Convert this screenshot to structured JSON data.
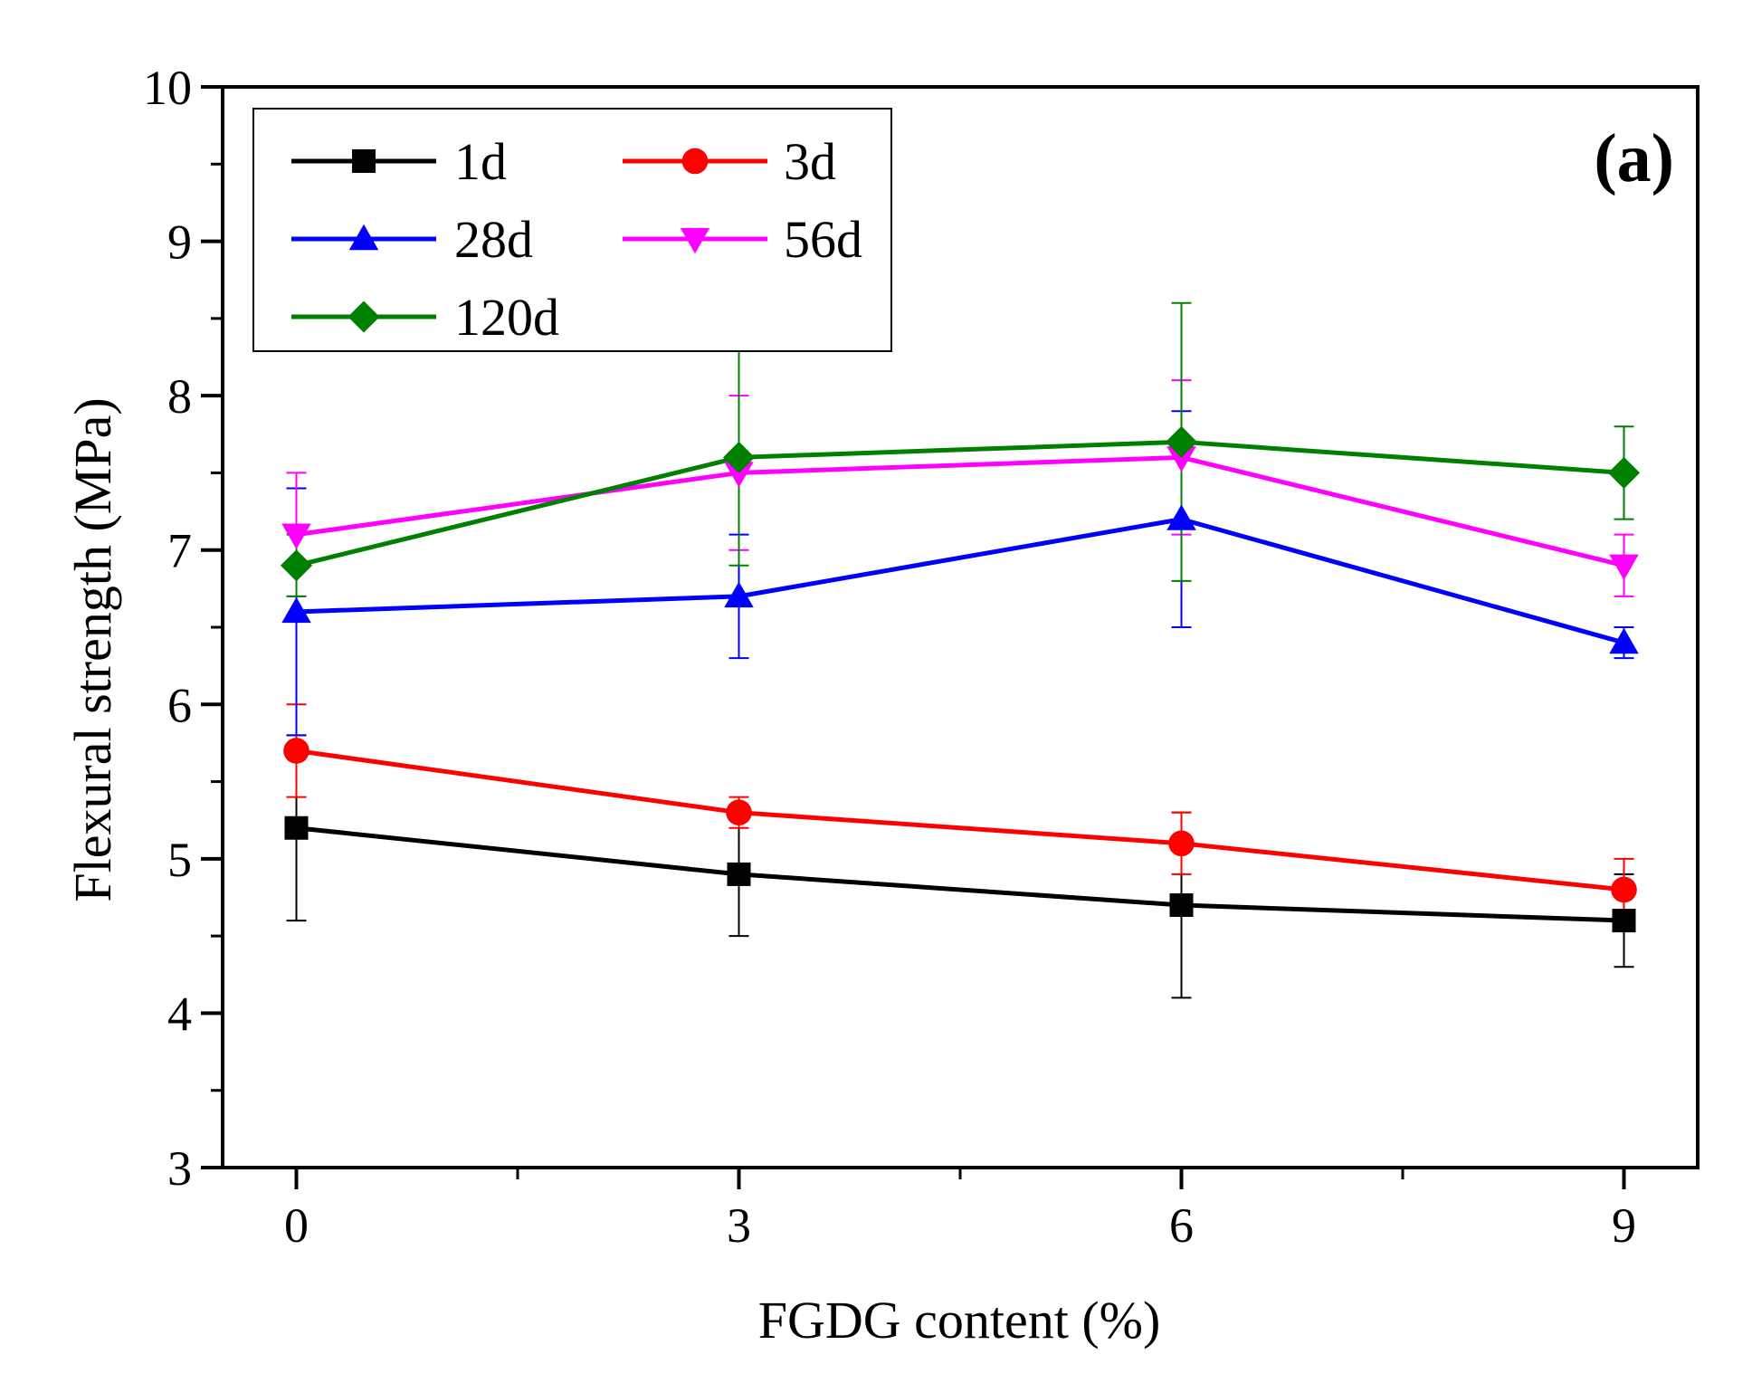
{
  "chart_data": {
    "type": "line",
    "panel_label": "(a)",
    "xlabel": "FGDG content (%)",
    "ylabel": "Flexural strength (MPa)",
    "x": [
      0,
      3,
      6,
      9
    ],
    "x_ticks": [
      "0",
      "3",
      "6",
      "9"
    ],
    "xlim": [
      -0.5,
      9.5
    ],
    "ylim": [
      3,
      10
    ],
    "y_ticks": [
      "3",
      "4",
      "5",
      "6",
      "7",
      "8",
      "9",
      "10"
    ],
    "legend_position": "top-left",
    "series": [
      {
        "name": "1d",
        "color": "#000000",
        "marker": "square",
        "values": [
          5.2,
          4.9,
          4.7,
          4.6
        ],
        "err_low": [
          4.6,
          4.5,
          4.1,
          4.3
        ],
        "err_high": [
          5.8,
          5.3,
          5.3,
          4.9
        ]
      },
      {
        "name": "3d",
        "color": "#ff0000",
        "marker": "circle",
        "values": [
          5.7,
          5.3,
          5.1,
          4.8
        ],
        "err_low": [
          5.4,
          5.2,
          4.9,
          4.6
        ],
        "err_high": [
          6.0,
          5.4,
          5.3,
          5.0
        ]
      },
      {
        "name": "28d",
        "color": "#0000ff",
        "marker": "triangle-up",
        "values": [
          6.6,
          6.7,
          7.2,
          6.4
        ],
        "err_low": [
          5.8,
          6.3,
          6.5,
          6.3
        ],
        "err_high": [
          7.4,
          7.1,
          7.9,
          6.5
        ]
      },
      {
        "name": "56d",
        "color": "#ff00ff",
        "marker": "triangle-down",
        "values": [
          7.1,
          7.5,
          7.6,
          6.9
        ],
        "err_low": [
          6.7,
          7.0,
          7.1,
          6.7
        ],
        "err_high": [
          7.5,
          8.0,
          8.1,
          7.1
        ]
      },
      {
        "name": "120d",
        "color": "#008000",
        "marker": "diamond",
        "values": [
          6.9,
          7.6,
          7.7,
          7.5
        ],
        "err_low": [
          6.7,
          6.9,
          6.8,
          7.2
        ],
        "err_high": [
          7.1,
          8.3,
          8.6,
          7.8
        ]
      }
    ]
  }
}
